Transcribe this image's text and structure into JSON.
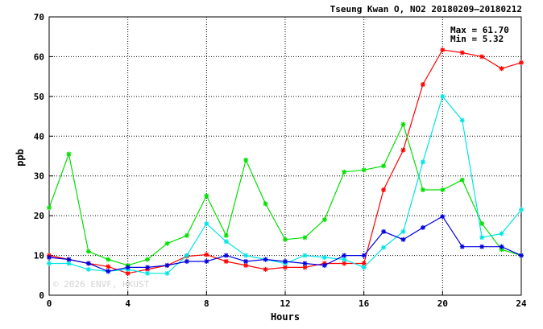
{
  "chart_data": {
    "type": "line",
    "title": "Tseung Kwan O, NO2 20180209–20180212",
    "xlabel": "Hours",
    "ylabel": "ppb",
    "xlim": [
      0,
      24
    ],
    "ylim": [
      0,
      70
    ],
    "xticks": [
      0,
      4,
      8,
      12,
      16,
      20,
      24
    ],
    "yticks": [
      0,
      10,
      20,
      30,
      40,
      50,
      60,
      70
    ],
    "grid": true,
    "annotations": {
      "max": "Max = 61.70",
      "min": "Min =  5.32"
    },
    "watermark": "© 2026  ENVF, HKUST",
    "x": [
      0,
      1,
      2,
      3,
      4,
      5,
      6,
      7,
      8,
      9,
      10,
      11,
      12,
      13,
      14,
      15,
      16,
      17,
      18,
      19,
      20,
      21,
      22,
      23,
      24
    ],
    "series": [
      {
        "color": "#ff0000",
        "values": [
          10.0,
          9.0,
          8.0,
          7.2,
          5.5,
          6.5,
          7.5,
          9.8,
          10.2,
          8.5,
          7.5,
          6.5,
          7.0,
          7.0,
          8.0,
          8.0,
          8.0,
          26.5,
          36.5,
          53.0,
          61.7,
          61.0,
          60.0,
          57.0,
          58.5
        ]
      },
      {
        "color": "#00e000",
        "values": [
          22.0,
          35.5,
          11.0,
          9.0,
          7.5,
          9.0,
          13.0,
          15.0,
          25.0,
          15.0,
          34.0,
          23.0,
          14.0,
          14.5,
          19.0,
          31.0,
          31.5,
          32.5,
          43.0,
          26.5,
          26.5,
          29.0,
          18.0,
          11.5,
          10.0
        ]
      },
      {
        "color": "#00e5e5",
        "values": [
          8.0,
          8.0,
          6.5,
          6.0,
          6.5,
          5.5,
          5.5,
          10.0,
          18.0,
          13.5,
          10.0,
          9.0,
          8.0,
          10.0,
          9.5,
          9.0,
          7.0,
          12.0,
          16.0,
          33.5,
          50.0,
          44.0,
          14.5,
          15.5,
          21.5
        ]
      },
      {
        "color": "#0000e0",
        "values": [
          9.5,
          9.0,
          8.0,
          6.0,
          7.0,
          7.0,
          7.5,
          8.5,
          8.5,
          10.0,
          8.5,
          9.0,
          8.5,
          8.0,
          7.5,
          10.0,
          10.0,
          16.0,
          14.0,
          17.0,
          19.8,
          12.2,
          12.2,
          12.2,
          10.0
        ]
      }
    ]
  }
}
